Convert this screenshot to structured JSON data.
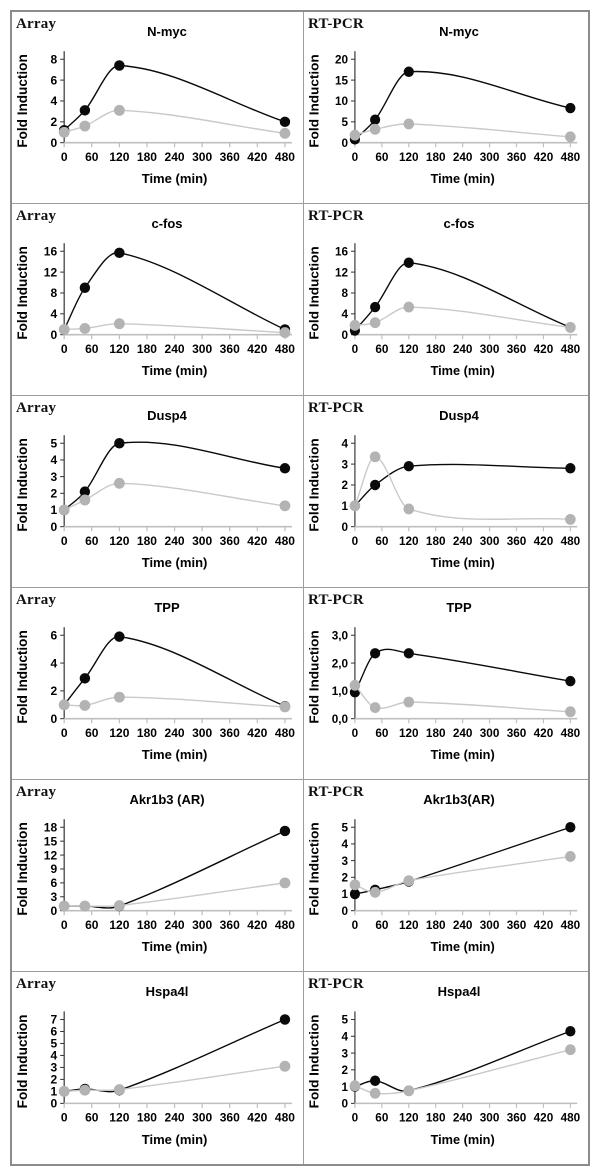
{
  "figure": {
    "columns": [
      "Array",
      "RT-PCR"
    ],
    "x_label": "Time (min)",
    "y_label": "Fold Induction",
    "x_ticks": [
      0,
      60,
      120,
      180,
      240,
      300,
      360,
      420,
      480
    ],
    "time_points_min": [
      0,
      45,
      120,
      480
    ],
    "colors": {
      "series_black": "#0a0a0a",
      "series_gray_marker": "#b3b3b3",
      "series_gray_line": "#c9c9c9",
      "x_axis": "#bfbfbf",
      "y_axis": "#333333",
      "border": "#8c8c8c"
    }
  },
  "chart_data": [
    {
      "type": "line",
      "method": "Array",
      "title": "N-myc",
      "xlabel": "Time (min)",
      "ylabel": "Fold Induction",
      "x": [
        0,
        45,
        120,
        480
      ],
      "ylim": [
        0,
        8
      ],
      "y_tick_labels": [
        "0",
        "2",
        "4",
        "6",
        "8"
      ],
      "series": [
        {
          "name": "black",
          "values": [
            1.2,
            3.1,
            7.4,
            2.0
          ]
        },
        {
          "name": "gray",
          "values": [
            1.0,
            1.6,
            3.1,
            0.9
          ]
        }
      ]
    },
    {
      "type": "line",
      "method": "RT-PCR",
      "title": "N-myc",
      "xlabel": "Time (min)",
      "ylabel": "Fold Induction",
      "x": [
        0,
        45,
        120,
        480
      ],
      "ylim": [
        0,
        20
      ],
      "y_tick_labels": [
        "0",
        "5",
        "10",
        "15",
        "20"
      ],
      "series": [
        {
          "name": "black",
          "values": [
            0.8,
            5.5,
            17.0,
            8.3
          ]
        },
        {
          "name": "gray",
          "values": [
            1.8,
            3.2,
            4.5,
            1.4
          ]
        }
      ]
    },
    {
      "type": "line",
      "method": "Array",
      "title": "c-fos",
      "xlabel": "Time (min)",
      "ylabel": "Fold Induction",
      "x": [
        0,
        45,
        120,
        480
      ],
      "ylim": [
        0,
        16
      ],
      "y_tick_labels": [
        "0",
        "4",
        "8",
        "12",
        "16"
      ],
      "series": [
        {
          "name": "black",
          "values": [
            1.0,
            9.0,
            15.7,
            1.0
          ]
        },
        {
          "name": "gray",
          "values": [
            1.0,
            1.2,
            2.1,
            0.4
          ]
        }
      ]
    },
    {
      "type": "line",
      "method": "RT-PCR",
      "title": "c-fos",
      "xlabel": "Time (min)",
      "ylabel": "Fold Induction",
      "x": [
        0,
        45,
        120,
        480
      ],
      "ylim": [
        0,
        16
      ],
      "y_tick_labels": [
        "0",
        "4",
        "8",
        "12",
        "16"
      ],
      "series": [
        {
          "name": "black",
          "values": [
            0.8,
            5.3,
            13.8,
            1.4
          ]
        },
        {
          "name": "gray",
          "values": [
            1.8,
            2.3,
            5.3,
            1.4
          ]
        }
      ]
    },
    {
      "type": "line",
      "method": "Array",
      "title": "Dusp4",
      "xlabel": "Time (min)",
      "ylabel": "Fold Induction",
      "x": [
        0,
        45,
        120,
        480
      ],
      "ylim": [
        0,
        5
      ],
      "y_tick_labels": [
        "0",
        "1",
        "2",
        "3",
        "4",
        "5"
      ],
      "series": [
        {
          "name": "black",
          "values": [
            1.0,
            2.1,
            5.0,
            3.5
          ]
        },
        {
          "name": "gray",
          "values": [
            1.0,
            1.6,
            2.6,
            1.25
          ]
        }
      ]
    },
    {
      "type": "line",
      "method": "RT-PCR",
      "title": "Dusp4",
      "xlabel": "Time (min)",
      "ylabel": "Fold Induction",
      "x": [
        0,
        45,
        120,
        480
      ],
      "ylim": [
        0,
        4
      ],
      "y_tick_labels": [
        "0",
        "1",
        "2",
        "3",
        "4"
      ],
      "series": [
        {
          "name": "black",
          "values": [
            1.0,
            2.0,
            2.9,
            2.8
          ]
        },
        {
          "name": "gray",
          "values": [
            1.0,
            3.35,
            0.85,
            0.35
          ]
        }
      ]
    },
    {
      "type": "line",
      "method": "Array",
      "title": "TPP",
      "xlabel": "Time (min)",
      "ylabel": "Fold Induction",
      "x": [
        0,
        45,
        120,
        480
      ],
      "ylim": [
        0,
        6
      ],
      "y_tick_labels": [
        "0",
        "2",
        "4",
        "6"
      ],
      "series": [
        {
          "name": "black",
          "values": [
            1.0,
            2.9,
            5.9,
            0.9
          ]
        },
        {
          "name": "gray",
          "values": [
            1.0,
            0.95,
            1.55,
            0.85
          ]
        }
      ]
    },
    {
      "type": "line",
      "method": "RT-PCR",
      "title": "TPP",
      "xlabel": "Time (min)",
      "ylabel": "Fold Induction",
      "x": [
        0,
        45,
        120,
        480
      ],
      "ylim": [
        0,
        3
      ],
      "y_tick_labels": [
        "0,0",
        "1,0",
        "2,0",
        "3,0"
      ],
      "series": [
        {
          "name": "black",
          "values": [
            0.95,
            2.35,
            2.35,
            1.35
          ]
        },
        {
          "name": "gray",
          "values": [
            1.2,
            0.4,
            0.6,
            0.25
          ]
        }
      ]
    },
    {
      "type": "line",
      "method": "Array",
      "title": "Akr1b3 (AR)",
      "xlabel": "Time (min)",
      "ylabel": "Fold Induction",
      "x": [
        0,
        45,
        120,
        480
      ],
      "ylim": [
        0,
        18
      ],
      "y_tick_labels": [
        "0",
        "3",
        "6",
        "9",
        "12",
        "15",
        "18"
      ],
      "series": [
        {
          "name": "black",
          "values": [
            1.0,
            1.0,
            1.0,
            17.2
          ]
        },
        {
          "name": "gray",
          "values": [
            1.0,
            1.0,
            1.1,
            6.0
          ]
        }
      ]
    },
    {
      "type": "line",
      "method": "RT-PCR",
      "title": "Akr1b3(AR)",
      "xlabel": "Time (min)",
      "ylabel": "Fold Induction",
      "x": [
        0,
        45,
        120,
        480
      ],
      "ylim": [
        0,
        5
      ],
      "y_tick_labels": [
        "0",
        "1",
        "2",
        "3",
        "4",
        "5"
      ],
      "series": [
        {
          "name": "black",
          "values": [
            1.0,
            1.25,
            1.75,
            5.0
          ]
        },
        {
          "name": "gray",
          "values": [
            1.55,
            1.1,
            1.8,
            3.25
          ]
        }
      ]
    },
    {
      "type": "line",
      "method": "Array",
      "title": "Hspa4l",
      "xlabel": "Time (min)",
      "ylabel": "Fold Induction",
      "x": [
        0,
        45,
        120,
        480
      ],
      "ylim": [
        0,
        7
      ],
      "y_tick_labels": [
        "0",
        "1",
        "2",
        "3",
        "4",
        "5",
        "6",
        "7"
      ],
      "series": [
        {
          "name": "black",
          "values": [
            1.0,
            1.2,
            1.1,
            7.0
          ]
        },
        {
          "name": "gray",
          "values": [
            1.0,
            1.1,
            1.15,
            3.1
          ]
        }
      ]
    },
    {
      "type": "line",
      "method": "RT-PCR",
      "title": "Hspa4l",
      "xlabel": "Time (min)",
      "ylabel": "Fold Induction",
      "x": [
        0,
        45,
        120,
        480
      ],
      "ylim": [
        0,
        5
      ],
      "y_tick_labels": [
        "0",
        "1",
        "2",
        "3",
        "4",
        "5"
      ],
      "series": [
        {
          "name": "black",
          "values": [
            1.0,
            1.35,
            0.75,
            4.3
          ]
        },
        {
          "name": "gray",
          "values": [
            1.05,
            0.6,
            0.75,
            3.2
          ]
        }
      ]
    }
  ]
}
